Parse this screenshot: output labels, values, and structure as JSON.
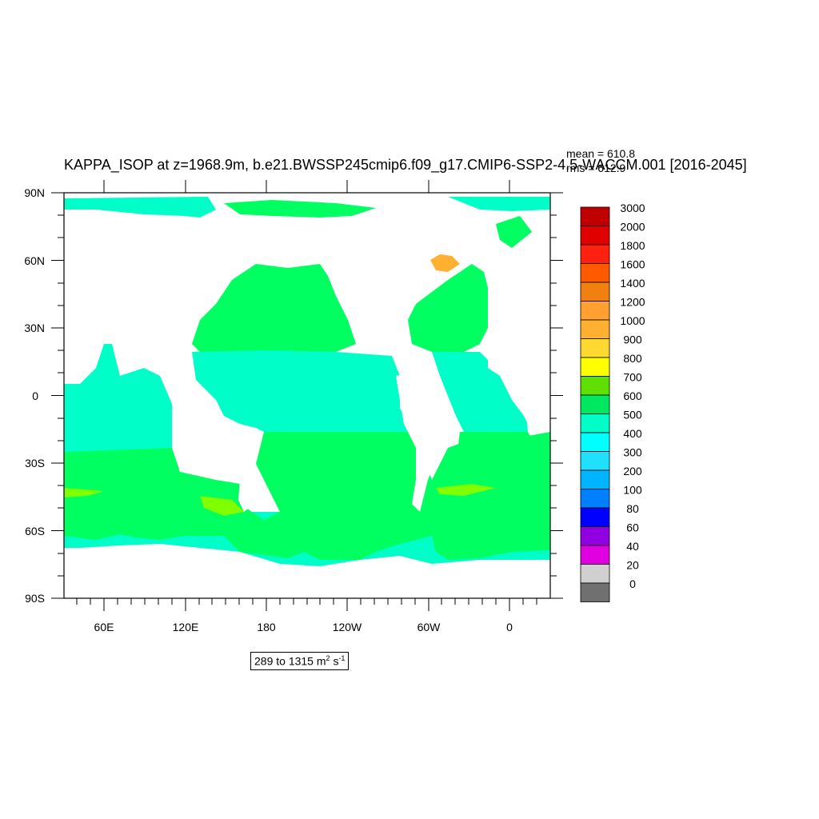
{
  "title": "KAPPA_ISOP at z=1968.9m, b.e21.BWSSP245cmip6.f09_g17.CMIP6-SSP2-4.5-WACCM.001 [2016-2045]",
  "stats": {
    "mean": "mean = 610.8",
    "rms": "rms = 612.9"
  },
  "lat_labels": [
    "90N",
    "60N",
    "30N",
    "0",
    "30S",
    "60S",
    "90S"
  ],
  "lon_labels": [
    "60E",
    "120E",
    "180",
    "120W",
    "60W",
    "0"
  ],
  "colorbar": {
    "levels": [
      "3000",
      "2000",
      "1800",
      "1600",
      "1400",
      "1200",
      "1000",
      "900",
      "800",
      "700",
      "600",
      "500",
      "400",
      "300",
      "200",
      "100",
      "80",
      "60",
      "40",
      "20",
      "0"
    ],
    "colors": [
      "#c00000",
      "#e00000",
      "#ff2010",
      "#ff5a00",
      "#f08010",
      "#ffa030",
      "#ffb030",
      "#ffd830",
      "#ffff00",
      "#60e000",
      "#00e860",
      "#00ffc8",
      "#00ffff",
      "#20e0ff",
      "#00b4ff",
      "#0080ff",
      "#0000ff",
      "#9000e0",
      "#e000e0",
      "#d0d0d0",
      "#707070"
    ]
  },
  "units": {
    "range": "289 to 1315",
    "unit": "m",
    "unit_exp": "2",
    "s": "s",
    "s_exp": "-1"
  },
  "map_colors": {
    "ocean_main": "#00ff60",
    "ocean_cyan": "#00ffc8",
    "land": "#ffffff",
    "yellow_green": "#80ff00",
    "orange": "#ffb030"
  }
}
